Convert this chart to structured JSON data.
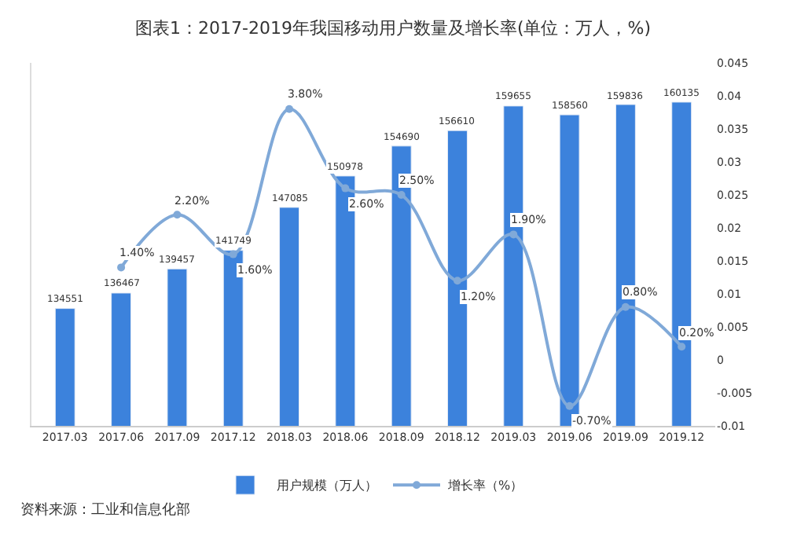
{
  "chart_data": {
    "type": "bar",
    "title": "图表1：2017-2019年我国移动用户数量及增长率(单位：万人，%)",
    "categories": [
      "2017.03",
      "2017.06",
      "2017.09",
      "2017.12",
      "2018.03",
      "2018.06",
      "2018.09",
      "2018.12",
      "2019.03",
      "2019.06",
      "2019.09",
      "2019.12"
    ],
    "series": [
      {
        "name": "用户规模（万人）",
        "type": "bar",
        "color": "#3c82dc",
        "values": [
          134551,
          136467,
          139457,
          141749,
          147085,
          150978,
          154690,
          156610,
          159655,
          158560,
          159836,
          160135
        ]
      },
      {
        "name": "增长率（%）",
        "type": "line",
        "axis": "y2",
        "color": "#80a9d8",
        "marker": "circle",
        "values": [
          null,
          0.014,
          0.022,
          0.016,
          0.038,
          0.026,
          0.025,
          0.012,
          0.019,
          -0.007,
          0.008,
          0.002
        ],
        "value_labels": [
          null,
          "1.40%",
          "2.20%",
          "1.60%",
          "3.80%",
          "2.60%",
          "2.50%",
          "1.20%",
          "1.90%",
          "-0.70%",
          "0.80%",
          "0.20%"
        ]
      }
    ],
    "data_labels": true,
    "ylim": [
      120000,
      165000
    ],
    "y2lim": [
      -0.01,
      0.045
    ],
    "y2ticks": [
      -0.01,
      -0.005,
      0,
      0.005,
      0.01,
      0.015,
      0.02,
      0.025,
      0.03,
      0.035,
      0.04,
      0.045
    ],
    "legend": "bottom",
    "annotations": [
      "资料来源：工业和信息化部"
    ]
  }
}
